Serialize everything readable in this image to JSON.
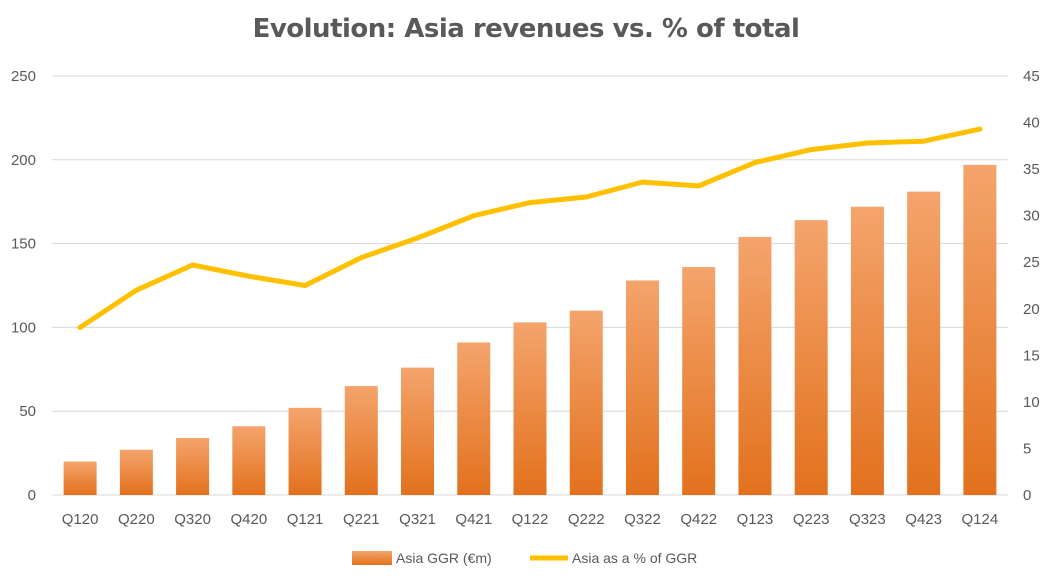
{
  "chart_data": {
    "type": "bar",
    "title": "Evolution: Asia revenues vs. % of total",
    "categories": [
      "Q120",
      "Q220",
      "Q320",
      "Q420",
      "Q121",
      "Q221",
      "Q321",
      "Q421",
      "Q122",
      "Q222",
      "Q322",
      "Q422",
      "Q123",
      "Q223",
      "Q323",
      "Q423",
      "Q124"
    ],
    "series": [
      {
        "name": "Asia GGR (€m)",
        "type": "bar",
        "axis": "left",
        "color": "#ED7D31",
        "values": [
          20,
          27,
          34,
          41,
          52,
          65,
          76,
          91,
          103,
          110,
          128,
          136,
          154,
          164,
          172,
          181,
          197
        ]
      },
      {
        "name": "Asia as a % of GGR",
        "type": "line",
        "axis": "right",
        "color": "#FFC000",
        "values": [
          18,
          22,
          24.7,
          23.5,
          22.5,
          25.5,
          27.6,
          30,
          31.4,
          32,
          33.6,
          33.2,
          35.7,
          37.1,
          37.8,
          38,
          39.3
        ]
      }
    ],
    "y_left": {
      "min": 0,
      "max": 250,
      "ticks": [
        0,
        50,
        100,
        150,
        200,
        250
      ]
    },
    "y_right": {
      "min": 0,
      "max": 45,
      "ticks": [
        0,
        5,
        10,
        15,
        20,
        25,
        30,
        35,
        40,
        45
      ]
    },
    "grid": true,
    "legend": "bottom"
  }
}
